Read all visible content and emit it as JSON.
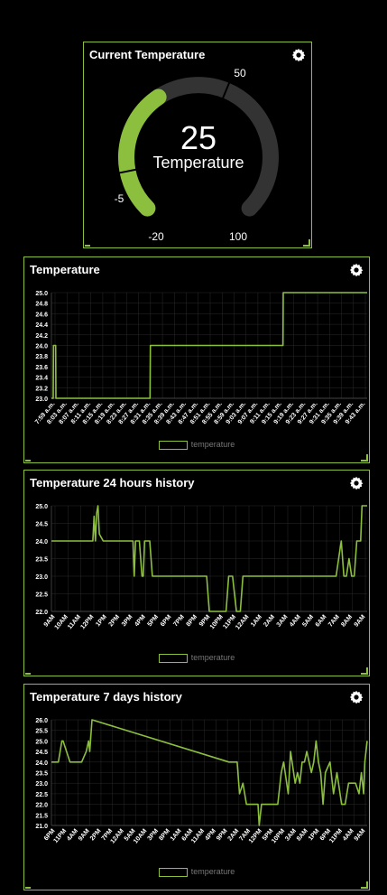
{
  "gauge": {
    "title": "Current Temperature",
    "value": "25",
    "label": "Temperature",
    "min": "-20",
    "max": "100",
    "marker_low": "-5",
    "marker_high": "50",
    "min_value": -20,
    "max_value": 100,
    "current": 25,
    "low_threshold": -5,
    "high_threshold": 50
  },
  "colors": {
    "accent": "#8dbf3f",
    "track": "#333333",
    "grid": "#2a2a2a",
    "text": "#ffffff"
  },
  "chart_data": [
    {
      "type": "line",
      "title": "Temperature",
      "legend": "temperature",
      "ylim": [
        23.0,
        25.0
      ],
      "yticks": [
        "25.0",
        "24.8",
        "24.6",
        "24.4",
        "24.2",
        "24.0",
        "23.8",
        "23.6",
        "23.4",
        "23.2",
        "23.0"
      ],
      "xticks": [
        "7:59 a.m.",
        "8:03 a.m.",
        "8:07 a.m.",
        "8:11 a.m.",
        "8:15 a.m.",
        "8:19 a.m.",
        "8:23 a.m.",
        "8:27 a.m.",
        "8:31 a.m.",
        "8:35 a.m.",
        "8:39 a.m.",
        "8:43 a.m.",
        "8:47 a.m.",
        "8:51 a.m.",
        "8:55 a.m.",
        "8:59 a.m.",
        "9:03 a.m.",
        "9:07 a.m.",
        "9:11 a.m.",
        "9:15 a.m.",
        "9:19 a.m.",
        "9:23 a.m.",
        "9:27 a.m.",
        "9:31 a.m.",
        "9:35 a.m.",
        "9:39 a.m.",
        "9:43 a.m."
      ],
      "x": [
        0,
        0.3,
        0.35,
        0.7,
        0.75,
        16.4,
        16.45,
        38.5,
        38.55,
        52.5
      ],
      "y": [
        23.0,
        23.0,
        24.0,
        24.0,
        23.0,
        23.0,
        24.0,
        24.0,
        25.0,
        25.0
      ],
      "xrange": [
        0,
        52.5
      ]
    },
    {
      "type": "line",
      "title": "Temperature 24 hours history",
      "legend": "temperature",
      "ylim": [
        22.0,
        25.0
      ],
      "yticks": [
        "25.0",
        "24.5",
        "24.0",
        "23.5",
        "23.0",
        "22.5",
        "22.0"
      ],
      "xticks": [
        "9AM",
        "10AM",
        "11AM",
        "12PM",
        "1PM",
        "2PM",
        "3PM",
        "4PM",
        "5PM",
        "6PM",
        "7PM",
        "8PM",
        "9PM",
        "10PM",
        "11PM",
        "12AM",
        "1AM",
        "2AM",
        "3AM",
        "4AM",
        "5AM",
        "6AM",
        "7AM",
        "8AM",
        "9AM"
      ],
      "x": [
        0,
        3.2,
        3.3,
        3.4,
        3.5,
        3.6,
        3.7,
        4.0,
        6.3,
        6.4,
        6.5,
        6.6,
        6.8,
        7.0,
        7.1,
        7.2,
        7.3,
        7.6,
        7.8,
        8.0,
        8.5,
        12.0,
        12.2,
        12.5,
        13.0,
        13.5,
        13.7,
        13.9,
        14.0,
        14.3,
        14.6,
        14.8,
        15.0,
        15.3,
        15.5,
        22.0,
        22.2,
        22.4,
        22.6,
        22.8,
        23.0,
        23.2,
        23.4,
        23.6,
        23.9,
        24.0,
        24.2,
        24.4
      ],
      "y": [
        24.0,
        24.0,
        24.7,
        24.0,
        24.8,
        25.0,
        24.2,
        24.0,
        24.0,
        23.0,
        24.0,
        24.0,
        24.0,
        23.0,
        23.0,
        24.0,
        24.0,
        24.0,
        23.0,
        23.0,
        23.0,
        23.0,
        22.0,
        22.0,
        22.0,
        22.0,
        23.0,
        23.0,
        23.0,
        22.0,
        22.0,
        23.0,
        23.0,
        23.0,
        23.0,
        23.0,
        23.5,
        24.0,
        23.0,
        23.0,
        23.5,
        23.0,
        23.0,
        24.0,
        24.0,
        25.0,
        25.0,
        25.0
      ],
      "xrange": [
        0,
        24.4
      ]
    },
    {
      "type": "line",
      "title": "Temperature 7 days history",
      "legend": "temperature",
      "ylim": [
        21.0,
        26.0
      ],
      "yticks": [
        "26.0",
        "25.5",
        "25.0",
        "24.5",
        "24.0",
        "23.5",
        "23.0",
        "22.5",
        "22.0",
        "21.5",
        "21.0"
      ],
      "xticks": [
        "6PM",
        "11PM",
        "4AM",
        "9AM",
        "2PM",
        "7PM",
        "12AM",
        "5AM",
        "10AM",
        "3PM",
        "8PM",
        "1AM",
        "6AM",
        "11AM",
        "4PM",
        "9PM",
        "2AM",
        "7AM",
        "12PM",
        "5PM",
        "10PM",
        "3AM",
        "8AM",
        "1PM",
        "6PM",
        "11PM",
        "4AM",
        "9AM"
      ],
      "x": [
        0,
        0.6,
        0.9,
        1.0,
        1.6,
        2.0,
        2.6,
        3.0,
        3.2,
        3.3,
        3.5,
        15.3,
        15.8,
        16.0,
        16.2,
        16.5,
        16.8,
        17.0,
        17.8,
        17.9,
        18.0,
        18.1,
        18.3,
        18.5,
        19.0,
        19.5,
        19.8,
        20.0,
        20.4,
        20.6,
        21.0,
        21.2,
        21.4,
        21.6,
        21.8,
        22.0,
        22.2,
        22.4,
        22.6,
        22.8,
        23.0,
        23.2,
        23.4,
        23.6,
        24.0,
        24.3,
        24.6,
        25.0,
        25.3,
        25.6,
        26.0,
        26.2,
        26.5,
        26.7,
        26.9,
        27.0,
        27.2
      ],
      "y": [
        24.0,
        24.0,
        25.0,
        25.0,
        24.0,
        24.0,
        24.0,
        24.5,
        25.0,
        24.5,
        26.0,
        24.0,
        24.0,
        24.0,
        22.5,
        23.0,
        22.0,
        22.0,
        22.0,
        21.0,
        21.5,
        22.0,
        22.0,
        22.0,
        22.0,
        22.0,
        23.5,
        24.0,
        22.5,
        24.5,
        23.0,
        23.5,
        23.0,
        24.0,
        24.0,
        24.5,
        24.0,
        23.5,
        24.0,
        25.0,
        24.0,
        23.5,
        22.0,
        23.5,
        24.0,
        22.5,
        23.5,
        22.0,
        22.0,
        23.0,
        23.0,
        23.0,
        22.5,
        23.5,
        22.5,
        24.0,
        25.0
      ],
      "xrange": [
        0,
        27.2
      ]
    }
  ]
}
